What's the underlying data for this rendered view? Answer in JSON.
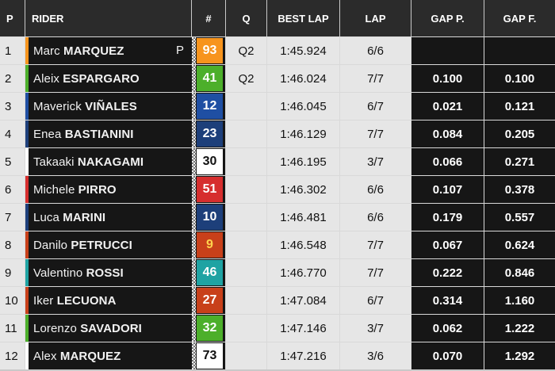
{
  "headers": {
    "pos": "P",
    "rider": "RIDER",
    "num": "#",
    "q": "Q",
    "best_lap": "BEST LAP",
    "lap": "LAP",
    "gap_prev": "GAP P.",
    "gap_first": "GAP F."
  },
  "rows": [
    {
      "pos": "1",
      "first": "Marc",
      "last": "MARQUEZ",
      "pole": "P",
      "num": "93",
      "num_bg": "#f7941d",
      "num_fg": "#ffffff",
      "team_color": "#f7941d",
      "q": "Q2",
      "best": "1:45.924",
      "lap": "6/6",
      "gap_p": "",
      "gap_f": ""
    },
    {
      "pos": "2",
      "first": "Aleix",
      "last": "ESPARGARO",
      "pole": "",
      "num": "41",
      "num_bg": "#4caf2a",
      "num_fg": "#ffffff",
      "team_color": "#4caf2a",
      "q": "Q2",
      "best": "1:46.024",
      "lap": "7/7",
      "gap_p": "0.100",
      "gap_f": "0.100"
    },
    {
      "pos": "3",
      "first": "Maverick",
      "last": "VIÑALES",
      "pole": "",
      "num": "12",
      "num_bg": "#1f4fa3",
      "num_fg": "#ffffff",
      "team_color": "#1f4fa3",
      "q": "",
      "best": "1:46.045",
      "lap": "6/7",
      "gap_p": "0.021",
      "gap_f": "0.121"
    },
    {
      "pos": "4",
      "first": "Enea",
      "last": "BASTIANINI",
      "pole": "",
      "num": "23",
      "num_bg": "#1d3f7a",
      "num_fg": "#ffffff",
      "team_color": "#1d3f7a",
      "q": "",
      "best": "1:46.129",
      "lap": "7/7",
      "gap_p": "0.084",
      "gap_f": "0.205"
    },
    {
      "pos": "5",
      "first": "Takaaki",
      "last": "NAKAGAMI",
      "pole": "",
      "num": "30",
      "num_bg": "#ffffff",
      "num_fg": "#111111",
      "team_color": "#ffffff",
      "q": "",
      "best": "1:46.195",
      "lap": "3/7",
      "gap_p": "0.066",
      "gap_f": "0.271"
    },
    {
      "pos": "6",
      "first": "Michele",
      "last": "PIRRO",
      "pole": "",
      "num": "51",
      "num_bg": "#d62e2e",
      "num_fg": "#ffffff",
      "team_color": "#d62e2e",
      "q": "",
      "best": "1:46.302",
      "lap": "6/6",
      "gap_p": "0.107",
      "gap_f": "0.378"
    },
    {
      "pos": "7",
      "first": "Luca",
      "last": "MARINI",
      "pole": "",
      "num": "10",
      "num_bg": "#1d3f7a",
      "num_fg": "#ffffff",
      "team_color": "#1d3f7a",
      "q": "",
      "best": "1:46.481",
      "lap": "6/6",
      "gap_p": "0.179",
      "gap_f": "0.557"
    },
    {
      "pos": "8",
      "first": "Danilo",
      "last": "PETRUCCI",
      "pole": "",
      "num": "9",
      "num_bg": "#c8401a",
      "num_fg": "#ffd34d",
      "team_color": "#c8401a",
      "q": "",
      "best": "1:46.548",
      "lap": "7/7",
      "gap_p": "0.067",
      "gap_f": "0.624"
    },
    {
      "pos": "9",
      "first": "Valentino",
      "last": "ROSSI",
      "pole": "",
      "num": "46",
      "num_bg": "#1fa3a3",
      "num_fg": "#ffffff",
      "team_color": "#1fa3a3",
      "q": "",
      "best": "1:46.770",
      "lap": "7/7",
      "gap_p": "0.222",
      "gap_f": "0.846"
    },
    {
      "pos": "10",
      "first": "Iker",
      "last": "LECUONA",
      "pole": "",
      "num": "27",
      "num_bg": "#c8401a",
      "num_fg": "#ffffff",
      "team_color": "#c8401a",
      "q": "",
      "best": "1:47.084",
      "lap": "6/7",
      "gap_p": "0.314",
      "gap_f": "1.160"
    },
    {
      "pos": "11",
      "first": "Lorenzo",
      "last": "SAVADORI",
      "pole": "",
      "num": "32",
      "num_bg": "#4caf2a",
      "num_fg": "#ffffff",
      "team_color": "#4caf2a",
      "q": "",
      "best": "1:47.146",
      "lap": "3/7",
      "gap_p": "0.062",
      "gap_f": "1.222"
    },
    {
      "pos": "12",
      "first": "Alex",
      "last": "MARQUEZ",
      "pole": "",
      "num": "73",
      "num_bg": "#ffffff",
      "num_fg": "#111111",
      "team_color": "#ffffff",
      "q": "",
      "best": "1:47.216",
      "lap": "3/6",
      "gap_p": "0.070",
      "gap_f": "1.292"
    }
  ]
}
